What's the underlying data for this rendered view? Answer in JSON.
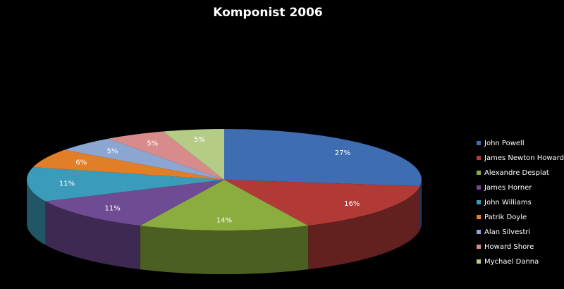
{
  "chart_data": {
    "type": "pie",
    "title": "Komponist 2006",
    "categories": [
      "John Powell",
      "James Newton Howard",
      "Alexandre Desplat",
      "James Horner",
      "John Williams",
      "Patrik Doyle",
      "Alan Silvestri",
      "Howard Shore",
      "Mychael Danna"
    ],
    "values": [
      27,
      16,
      14,
      11,
      11,
      6,
      5,
      5,
      5
    ],
    "value_labels": [
      "27%",
      "16%",
      "14%",
      "11%",
      "11%",
      "6%",
      "5%",
      "5%",
      "5%"
    ],
    "colors": [
      "#3e6db2",
      "#b23a36",
      "#8bac3e",
      "#6e4b93",
      "#3a9cba",
      "#e27e27",
      "#8ba6d1",
      "#d78c8b",
      "#b5cc86"
    ],
    "legend": "right"
  }
}
